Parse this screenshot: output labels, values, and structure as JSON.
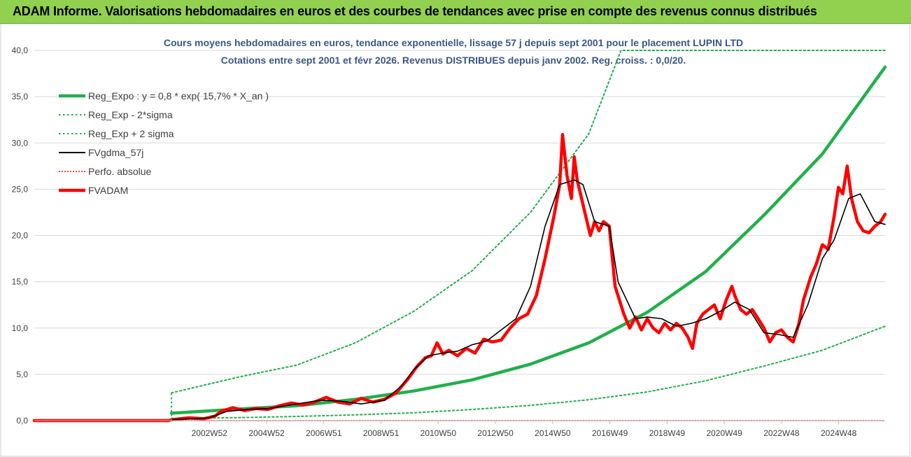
{
  "header": {
    "title": "ADAM Informe. Valorisations hebdomadaires en euros et des courbes de tendances avec prise en compte des revenus connus distribués"
  },
  "chart_data": {
    "type": "line",
    "subtitle_line1": "Cours moyens hebdomadaires en euros, tendance exponentielle, lissage 57 j depuis sept 2001 pour le placement LUPIN LTD",
    "subtitle_line2": "Cotations entre sept 2001 et févr 2026.  Revenus DISTRIBUES depuis janv 2002. Reg. croiss. : 0,0/20.",
    "ylim": [
      0,
      40
    ],
    "y_ticks": [
      "0,0",
      "5,0",
      "10,0",
      "15,0",
      "20,0",
      "25,0",
      "30,0",
      "35,0",
      "40,0"
    ],
    "x_tick_labels": [
      "2002W52",
      "2004W52",
      "2006W51",
      "2008W51",
      "2010W50",
      "2012W50",
      "2014W50",
      "2016W49",
      "2018W49",
      "2020W49",
      "2022W48",
      "2024W48"
    ],
    "x_range": [
      1997.0,
      2026.15
    ],
    "data_start": 2001.7,
    "legend": [
      {
        "name": "Reg_Expo : y = 0,8 * exp( 15,7% *  X_an )",
        "color": "#21b04b",
        "style": "solid-thick"
      },
      {
        "name": "Reg_Exp - 2*sigma",
        "color": "#21b04b",
        "style": "dotted"
      },
      {
        "name": "Reg_Exp + 2 sigma",
        "color": "#21b04b",
        "style": "dotted"
      },
      {
        "name": "FVgdma_57j",
        "color": "#000000",
        "style": "solid"
      },
      {
        "name": "Perfo. absolue",
        "color": "#ff0000",
        "style": "dotted-thin"
      },
      {
        "name": "FVADAM",
        "color": "#ff0000",
        "style": "solid-thick"
      }
    ],
    "series": [
      {
        "name": "Reg_Expo : y = 0,8 * exp( 15,7% *  X_an )",
        "x": [
          2001.7,
          2004,
          2006,
          2008,
          2010,
          2012,
          2014,
          2016,
          2018,
          2020,
          2022,
          2024,
          2026.15
        ],
        "values": [
          0.8,
          1.25,
          1.6,
          2.3,
          3.2,
          4.4,
          6.1,
          8.4,
          11.7,
          16.1,
          22.2,
          28.8,
          38.2
        ]
      },
      {
        "name": "Reg_Exp - 2*sigma",
        "x": [
          2001.7,
          2004,
          2006,
          2008,
          2010,
          2012,
          2014,
          2016,
          2018,
          2020,
          2022,
          2024,
          2026.15
        ],
        "values": [
          0.25,
          0.32,
          0.45,
          0.62,
          0.85,
          1.2,
          1.65,
          2.25,
          3.1,
          4.3,
          5.9,
          7.6,
          10.2
        ]
      },
      {
        "name": "Reg_Exp + 2 sigma",
        "x": [
          2001.7,
          2004,
          2006,
          2008,
          2010,
          2012,
          2014,
          2016,
          2017.1,
          2026.15
        ],
        "values": [
          3.0,
          4.7,
          6.0,
          8.4,
          11.8,
          16.2,
          22.5,
          31.0,
          40.0,
          40.0
        ]
      },
      {
        "name": "FVgdma_57j",
        "x": [
          2001.7,
          2002.5,
          2003,
          2003.6,
          2004.3,
          2005,
          2006,
          2006.8,
          2007.5,
          2008.2,
          2009,
          2009.6,
          2010,
          2010.5,
          2011,
          2011.5,
          2012,
          2012.5,
          2013,
          2013.5,
          2014,
          2014.5,
          2015,
          2015.5,
          2015.8,
          2016.2,
          2016.7,
          2017,
          2017.6,
          2018,
          2018.5,
          2019,
          2019.5,
          2020,
          2020.5,
          2021,
          2021.5,
          2022,
          2022.5,
          2023,
          2023.5,
          2024,
          2024.4,
          2024.9,
          2025.3,
          2025.8,
          2026.15
        ],
        "values": [
          0.1,
          0.2,
          0.3,
          1.0,
          1.2,
          1.3,
          1.8,
          2.2,
          2.1,
          1.8,
          2.2,
          3.8,
          5.5,
          7.0,
          7.3,
          7.5,
          8.2,
          8.6,
          9.8,
          11.0,
          14.5,
          21.0,
          25.5,
          26.0,
          25.5,
          21.5,
          21.0,
          15.0,
          11.0,
          11.2,
          11.0,
          10.2,
          10.5,
          11.0,
          11.8,
          12.8,
          12.0,
          9.5,
          9.3,
          9.0,
          12.5,
          17.5,
          19.5,
          24.0,
          24.5,
          21.5,
          21.2
        ]
      },
      {
        "name": "Perfo. absolue",
        "x": [
          1997.0,
          2026.15
        ],
        "values": [
          0.0,
          0.0
        ]
      },
      {
        "name": "FVADAM",
        "x": [
          1997.0,
          2001.6,
          2001.7,
          2002.3,
          2002.8,
          2003.2,
          2003.4,
          2003.8,
          2004.2,
          2004.6,
          2005.0,
          2005.4,
          2005.8,
          2006.2,
          2006.6,
          2007.0,
          2007.4,
          2007.8,
          2008.2,
          2008.6,
          2009.0,
          2009.4,
          2009.8,
          2010.1,
          2010.4,
          2010.6,
          2010.8,
          2011.0,
          2011.2,
          2011.5,
          2011.8,
          2012.1,
          2012.4,
          2012.7,
          2013.0,
          2013.3,
          2013.6,
          2013.9,
          2014.2,
          2014.5,
          2014.8,
          2015.0,
          2015.1,
          2015.25,
          2015.4,
          2015.5,
          2015.6,
          2015.75,
          2015.9,
          2016.05,
          2016.2,
          2016.35,
          2016.5,
          2016.7,
          2016.9,
          2017.05,
          2017.2,
          2017.4,
          2017.6,
          2017.8,
          2018.0,
          2018.2,
          2018.4,
          2018.6,
          2018.8,
          2019.0,
          2019.2,
          2019.4,
          2019.55,
          2019.7,
          2019.9,
          2020.1,
          2020.3,
          2020.5,
          2020.7,
          2020.9,
          2021.0,
          2021.2,
          2021.4,
          2021.6,
          2021.8,
          2022.0,
          2022.2,
          2022.4,
          2022.6,
          2022.8,
          2023.0,
          2023.2,
          2023.35,
          2023.6,
          2023.8,
          2024.0,
          2024.2,
          2024.4,
          2024.55,
          2024.7,
          2024.85,
          2025.0,
          2025.2,
          2025.4,
          2025.6,
          2025.8,
          2026.0,
          2026.15
        ],
        "values": [
          0.0,
          0.0,
          0.1,
          0.3,
          0.2,
          0.5,
          1.0,
          1.4,
          1.1,
          1.3,
          1.2,
          1.6,
          1.9,
          1.7,
          2.0,
          2.5,
          2.0,
          1.8,
          2.4,
          2.0,
          2.3,
          3.0,
          4.5,
          5.8,
          6.8,
          7.0,
          8.4,
          7.2,
          7.6,
          7.0,
          7.8,
          7.3,
          8.8,
          8.5,
          8.7,
          10.0,
          11.0,
          11.5,
          13.5,
          17.5,
          22.0,
          25.5,
          30.9,
          26.5,
          24.0,
          28.5,
          26.0,
          24.0,
          22.0,
          20.0,
          21.5,
          20.5,
          21.5,
          21.0,
          14.5,
          13.0,
          11.5,
          10.0,
          11.2,
          9.8,
          11.0,
          10.0,
          9.5,
          10.5,
          9.8,
          10.5,
          10.0,
          9.0,
          7.8,
          10.5,
          11.5,
          12.0,
          12.5,
          11.0,
          13.0,
          14.5,
          13.5,
          12.0,
          11.5,
          12.0,
          11.0,
          10.0,
          8.5,
          9.5,
          9.8,
          9.0,
          8.5,
          10.5,
          13.0,
          15.5,
          17.0,
          19.0,
          18.5,
          22.0,
          25.2,
          24.5,
          27.5,
          24.0,
          21.5,
          20.5,
          20.3,
          21.0,
          21.5,
          22.3
        ]
      }
    ]
  }
}
